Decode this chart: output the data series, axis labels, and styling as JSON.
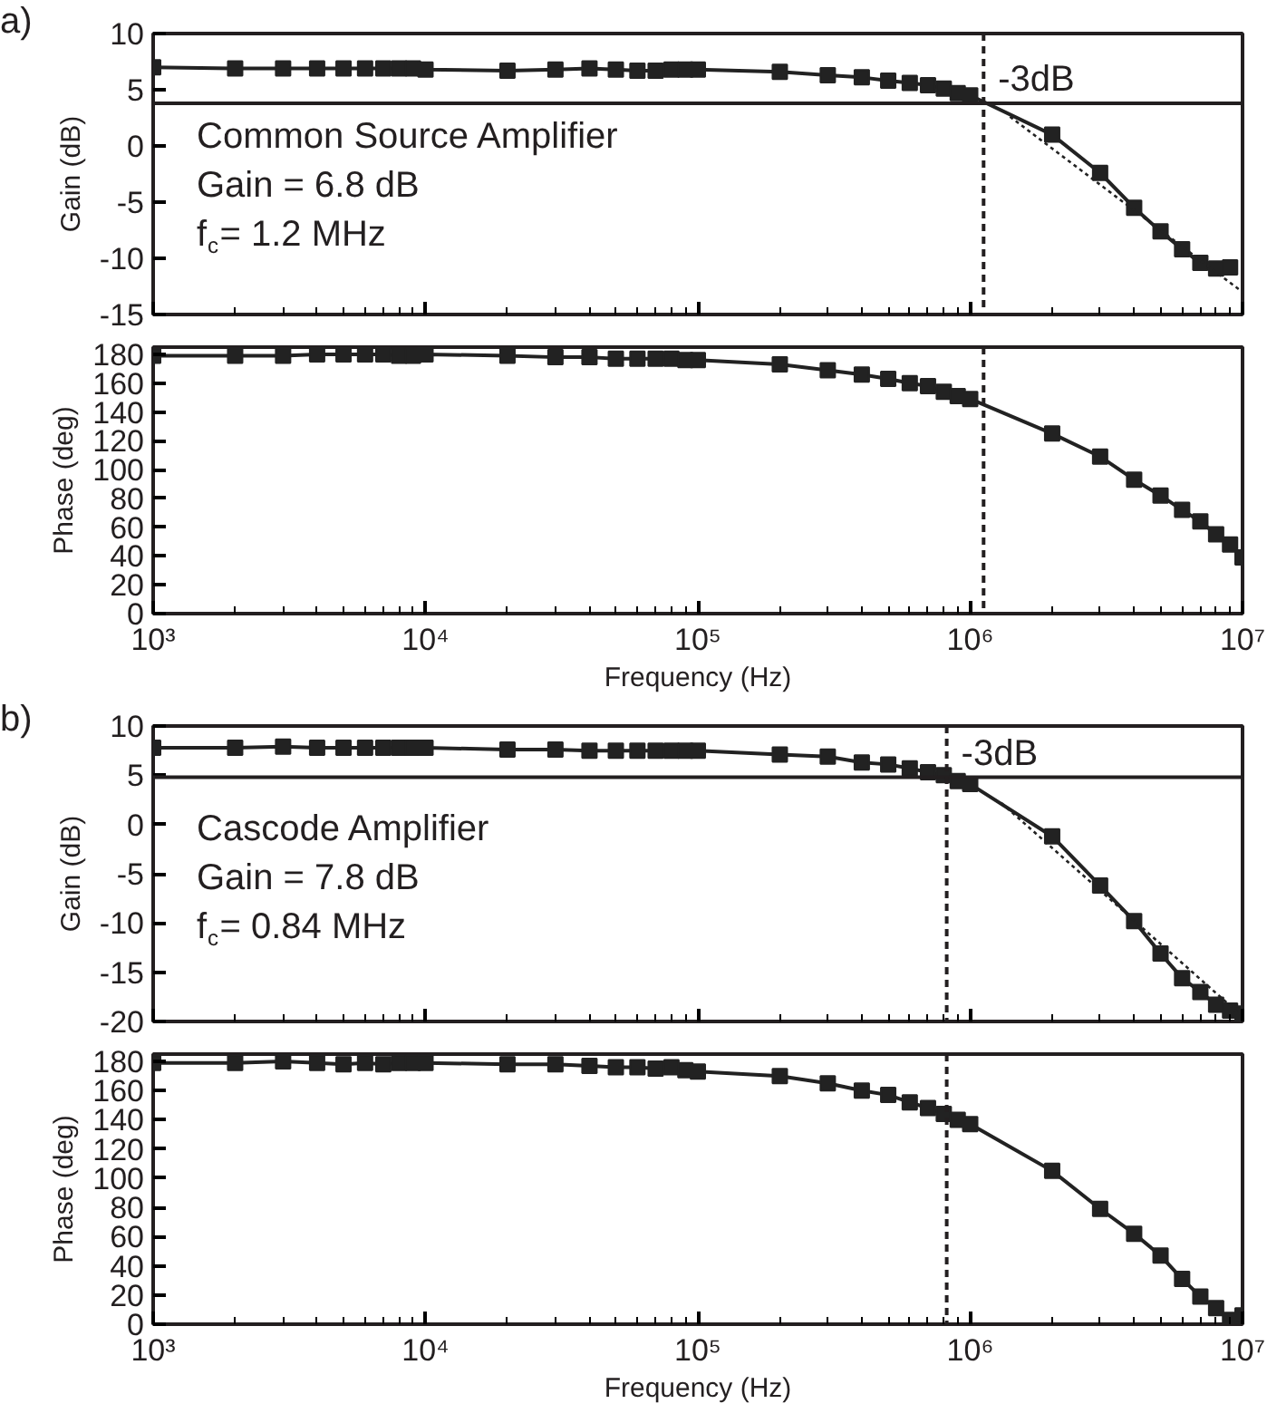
{
  "chart_data": [
    {
      "type": "line",
      "title": "a)",
      "ylabel": "Gain (dB)",
      "xlim": [
        1000,
        10000000
      ],
      "ylim": [
        -15,
        10
      ],
      "log": "x",
      "tick_labels": "y",
      "marker": "square",
      "line_style": "solid",
      "grid": false,
      "xticks": [
        {
          "value": 1000,
          "label": null
        },
        {
          "value": 10000,
          "label": null
        },
        {
          "value": 100000,
          "label": null
        },
        {
          "value": 1000000,
          "label": null
        },
        {
          "value": 10000000,
          "label": null
        }
      ],
      "yticks": [
        -15,
        -10,
        -5,
        0,
        5,
        10
      ],
      "x": [
        1000,
        2000,
        3000,
        4000,
        5000,
        6000,
        7000,
        8000,
        9000,
        10000,
        20000,
        30000,
        40000,
        50000,
        60000,
        70000,
        80000,
        90000,
        100000,
        200000,
        300000,
        400000,
        500000,
        600000,
        700000,
        800000,
        900000,
        1000000,
        2000000,
        3000000,
        4000000,
        5000000,
        6000000,
        7000000,
        8000000,
        9000000
      ],
      "series": [
        {
          "color": "#222222",
          "values": [
            7.0,
            6.9,
            6.9,
            6.9,
            6.9,
            6.9,
            6.9,
            6.9,
            6.9,
            6.8,
            6.7,
            6.8,
            6.9,
            6.8,
            6.7,
            6.7,
            6.8,
            6.8,
            6.8,
            6.6,
            6.3,
            6.1,
            5.8,
            5.6,
            5.4,
            5.1,
            4.7,
            4.5,
            1.0,
            -2.4,
            -5.5,
            -7.6,
            -9.2,
            -10.4,
            -10.9,
            -10.8
          ]
        },
        {
          "type": "line",
          "color": "#222222",
          "marker": "none",
          "line_style": "dotted",
          "x": [
            1400000,
            10000000
          ],
          "values": [
            2.6,
            -13
          ]
        }
      ],
      "ref_lines": [
        {
          "axis": "y",
          "value": 3.8,
          "label": "-3dB",
          "line_style": "solid"
        },
        {
          "axis": "x",
          "value": 1120000,
          "line_style": "dashed"
        }
      ],
      "annotations": [
        "Common Source Amplifier",
        "Gain =  6.8 dB",
        "f$_{c}$= 1.2 MHz"
      ]
    },
    {
      "type": "line",
      "ylabel": "Phase (deg)",
      "xlabel": "Frequency (Hz)",
      "xlim": [
        1000,
        10000000
      ],
      "ylim": [
        0,
        185
      ],
      "log": "x",
      "marker": "square",
      "line_style": "solid",
      "grid": false,
      "xticks": [
        {
          "value": 1000,
          "label": "10³"
        },
        {
          "value": 10000,
          "label": "10⁴"
        },
        {
          "value": 100000,
          "label": "10⁵"
        },
        {
          "value": 1000000,
          "label": "10⁶"
        },
        {
          "value": 10000000,
          "label": "10⁷"
        }
      ],
      "yticks": [
        0,
        20,
        40,
        60,
        80,
        100,
        120,
        140,
        160,
        180
      ],
      "x": [
        1000,
        2000,
        3000,
        4000,
        5000,
        6000,
        7000,
        8000,
        9000,
        10000,
        20000,
        30000,
        40000,
        50000,
        60000,
        70000,
        80000,
        90000,
        100000,
        200000,
        300000,
        400000,
        500000,
        600000,
        700000,
        800000,
        900000,
        1000000,
        2000000,
        3000000,
        4000000,
        5000000,
        6000000,
        7000000,
        8000000,
        9000000,
        10000000
      ],
      "series": [
        {
          "color": "#222222",
          "values": [
            179,
            179,
            179,
            180,
            180,
            180,
            180,
            179,
            179,
            180,
            179,
            178,
            178,
            177,
            177,
            177,
            177,
            176,
            176,
            173,
            169,
            166,
            163,
            160,
            158,
            154,
            151,
            149,
            125,
            109,
            93,
            82,
            72,
            64,
            55,
            48,
            39
          ]
        }
      ],
      "ref_lines": [
        {
          "axis": "x",
          "value": 1120000,
          "line_style": "dashed"
        }
      ]
    },
    {
      "type": "line",
      "title": "b)",
      "ylabel": "Gain (dB)",
      "xlim": [
        1000,
        10000000
      ],
      "ylim": [
        -20,
        10
      ],
      "log": "x",
      "tick_labels": "y",
      "marker": "square",
      "line_style": "solid",
      "grid": false,
      "xticks": [
        {
          "value": 1000,
          "label": null
        },
        {
          "value": 10000,
          "label": null
        },
        {
          "value": 100000,
          "label": null
        },
        {
          "value": 1000000,
          "label": null
        },
        {
          "value": 10000000,
          "label": null
        }
      ],
      "yticks": [
        -20,
        -15,
        -10,
        -5,
        0,
        5,
        10
      ],
      "x": [
        1000,
        2000,
        3000,
        4000,
        5000,
        6000,
        7000,
        8000,
        9000,
        10000,
        20000,
        30000,
        40000,
        50000,
        60000,
        70000,
        80000,
        90000,
        100000,
        200000,
        300000,
        400000,
        500000,
        600000,
        700000,
        800000,
        900000,
        1000000,
        2000000,
        3000000,
        4000000,
        5000000,
        6000000,
        7000000,
        8000000,
        9000000,
        10000000
      ],
      "series": [
        {
          "color": "#222222",
          "values": [
            7.8,
            7.8,
            7.9,
            7.8,
            7.8,
            7.8,
            7.8,
            7.8,
            7.8,
            7.8,
            7.6,
            7.6,
            7.5,
            7.5,
            7.5,
            7.5,
            7.5,
            7.5,
            7.5,
            7.1,
            6.9,
            6.3,
            6.1,
            5.7,
            5.3,
            5.0,
            4.4,
            4.1,
            -1.2,
            -6.2,
            -9.8,
            -13.1,
            -15.6,
            -17.0,
            -18.3,
            -18.9,
            -19.2
          ]
        },
        {
          "type": "line",
          "color": "#222222",
          "marker": "none",
          "line_style": "dotted",
          "x": [
            1300000,
            10000000
          ],
          "values": [
            2.2,
            -19.5
          ]
        }
      ],
      "ref_lines": [
        {
          "axis": "y",
          "value": 4.8,
          "label": "-3dB",
          "line_style": "solid"
        },
        {
          "axis": "x",
          "value": 820000,
          "line_style": "dashed"
        }
      ],
      "annotations": [
        "Cascode Amplifier",
        "Gain =  7.8 dB",
        "f$_{c}$= 0.84 MHz"
      ]
    },
    {
      "type": "line",
      "ylabel": "Phase (deg)",
      "xlabel": "Frequency (Hz)",
      "xlim": [
        1000,
        10000000
      ],
      "ylim": [
        0,
        185
      ],
      "log": "x",
      "marker": "square",
      "line_style": "solid",
      "grid": false,
      "xticks": [
        {
          "value": 1000,
          "label": "10³"
        },
        {
          "value": 10000,
          "label": "10⁴"
        },
        {
          "value": 100000,
          "label": "10⁵"
        },
        {
          "value": 1000000,
          "label": "10⁶"
        },
        {
          "value": 10000000,
          "label": "10⁷"
        }
      ],
      "yticks": [
        0,
        20,
        40,
        60,
        80,
        100,
        120,
        140,
        160,
        180
      ],
      "x": [
        1000,
        2000,
        3000,
        4000,
        5000,
        6000,
        7000,
        8000,
        9000,
        10000,
        20000,
        30000,
        40000,
        50000,
        60000,
        70000,
        80000,
        90000,
        100000,
        200000,
        300000,
        400000,
        500000,
        600000,
        700000,
        800000,
        900000,
        1000000,
        2000000,
        3000000,
        4000000,
        5000000,
        6000000,
        7000000,
        8000000,
        9000000,
        10000000
      ],
      "series": [
        {
          "color": "#222222",
          "values": [
            179,
            179,
            180,
            179,
            178,
            179,
            178,
            179,
            179,
            179,
            178,
            178,
            177,
            176,
            176,
            175,
            176,
            174,
            173,
            170,
            165,
            160,
            157,
            152,
            148,
            144,
            140,
            137,
            105,
            79,
            62,
            47,
            31,
            19,
            11,
            3,
            6
          ]
        }
      ],
      "ref_lines": [
        {
          "axis": "x",
          "value": 820000,
          "line_style": "dashed"
        }
      ]
    }
  ]
}
